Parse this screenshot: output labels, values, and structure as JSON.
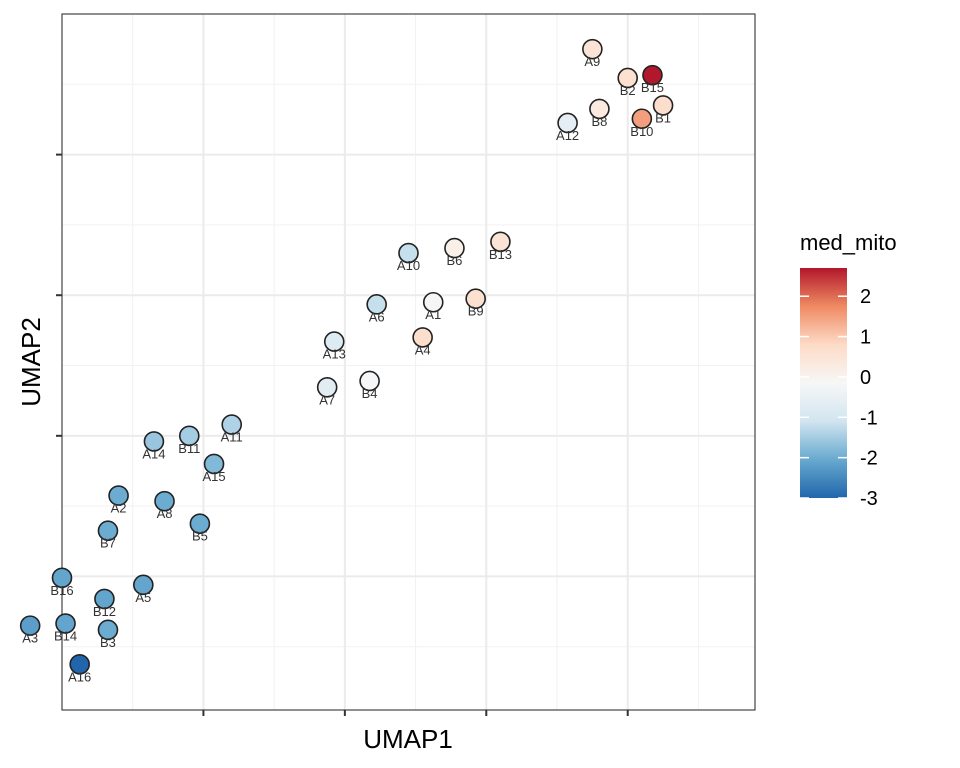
{
  "chart_data": {
    "type": "scatter",
    "title": "",
    "xlabel": "UMAP1",
    "ylabel": "UMAP2",
    "xlim": [
      -1.5,
      8.3
    ],
    "ylim": [
      -1.0,
      8.9
    ],
    "x_ticks": [
      0.5,
      2.5,
      4.5,
      6.5
    ],
    "y_ticks": [
      0.9,
      2.9,
      4.9,
      6.9
    ],
    "tick_labels_shown": false,
    "grid": true,
    "theme": "bw",
    "color_by": "med_mito",
    "legend": {
      "title": "med_mito",
      "position": "right",
      "range": [
        -3.0,
        2.7
      ],
      "ticks": [
        2,
        1,
        0,
        -1,
        -2,
        -3
      ],
      "tick_labels": [
        "2",
        "1",
        "0",
        "-1",
        "-2",
        "-3"
      ],
      "colors": [
        "#b2182b",
        "#ef8a62",
        "#fddbc7",
        "#f7f7f7",
        "#d1e5f0",
        "#67a9cf",
        "#2166ac"
      ]
    },
    "points": [
      {
        "label": "A9",
        "x": 6.0,
        "y": 8.4,
        "value": 0.5
      },
      {
        "label": "B2",
        "x": 6.5,
        "y": 7.99,
        "value": 0.6
      },
      {
        "label": "B15",
        "x": 6.85,
        "y": 8.03,
        "value": 2.7
      },
      {
        "label": "B8",
        "x": 6.1,
        "y": 7.55,
        "value": 0.3
      },
      {
        "label": "B1",
        "x": 7.0,
        "y": 7.6,
        "value": 0.7
      },
      {
        "label": "B10",
        "x": 6.7,
        "y": 7.41,
        "value": 1.5
      },
      {
        "label": "A12",
        "x": 5.65,
        "y": 7.35,
        "value": -0.6
      },
      {
        "label": "A10",
        "x": 3.4,
        "y": 5.5,
        "value": -1.2
      },
      {
        "label": "B6",
        "x": 4.05,
        "y": 5.57,
        "value": 0.1
      },
      {
        "label": "B13",
        "x": 4.7,
        "y": 5.66,
        "value": 0.5
      },
      {
        "label": "A1",
        "x": 3.75,
        "y": 4.8,
        "value": -0.1
      },
      {
        "label": "B9",
        "x": 4.35,
        "y": 4.85,
        "value": 0.6
      },
      {
        "label": "A6",
        "x": 2.95,
        "y": 4.77,
        "value": -1.2
      },
      {
        "label": "A4",
        "x": 3.6,
        "y": 4.3,
        "value": 0.7
      },
      {
        "label": "A13",
        "x": 2.35,
        "y": 4.24,
        "value": -0.8
      },
      {
        "label": "B4",
        "x": 2.85,
        "y": 3.68,
        "value": -0.2
      },
      {
        "label": "A7",
        "x": 2.25,
        "y": 3.59,
        "value": -0.7
      },
      {
        "label": "A11",
        "x": 0.9,
        "y": 3.06,
        "value": -1.4
      },
      {
        "label": "B11",
        "x": 0.3,
        "y": 2.9,
        "value": -1.5
      },
      {
        "label": "A14",
        "x": -0.2,
        "y": 2.82,
        "value": -1.6
      },
      {
        "label": "A15",
        "x": 0.65,
        "y": 2.5,
        "value": -1.8
      },
      {
        "label": "A2",
        "x": -0.7,
        "y": 2.05,
        "value": -2.0
      },
      {
        "label": "A8",
        "x": -0.05,
        "y": 1.97,
        "value": -2.0
      },
      {
        "label": "B5",
        "x": 0.45,
        "y": 1.65,
        "value": -2.0
      },
      {
        "label": "B7",
        "x": -0.85,
        "y": 1.55,
        "value": -2.0
      },
      {
        "label": "B16",
        "x": -1.5,
        "y": 0.88,
        "value": -2.1
      },
      {
        "label": "A5",
        "x": -0.35,
        "y": 0.78,
        "value": -2.1
      },
      {
        "label": "B12",
        "x": -0.9,
        "y": 0.58,
        "value": -2.1
      },
      {
        "label": "A3",
        "x": -1.95,
        "y": 0.2,
        "value": -2.2
      },
      {
        "label": "B14",
        "x": -1.45,
        "y": 0.23,
        "value": -2.1
      },
      {
        "label": "B3",
        "x": -0.85,
        "y": 0.14,
        "value": -2.0
      },
      {
        "label": "A16",
        "x": -1.25,
        "y": -0.35,
        "value": -3.0
      }
    ]
  }
}
